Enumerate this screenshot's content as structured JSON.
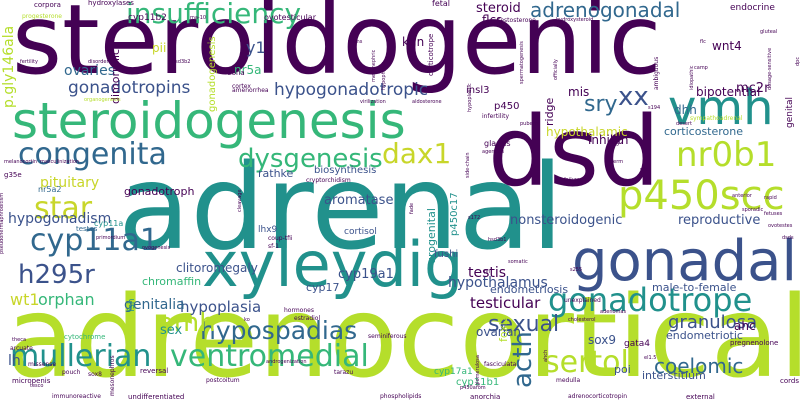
{
  "cloud": {
    "background": "#ffffff",
    "palette": {
      "purple": "#440154",
      "indigo": "#3b528b",
      "blue": "#31688e",
      "teal": "#21918c",
      "green": "#35b779",
      "lime": "#b5de2b",
      "yellow": "#c8d62a"
    },
    "words": [
      {
        "text": "steroidogenic",
        "weight": 1.0,
        "color": "purple"
      },
      {
        "text": "adrenal",
        "weight": 0.96,
        "color": "teal"
      },
      {
        "text": "adrenocortical",
        "weight": 0.94,
        "color": "lime"
      },
      {
        "text": "dsd",
        "weight": 0.82,
        "color": "purple"
      },
      {
        "text": "xyleydig",
        "weight": 0.7,
        "color": "teal"
      },
      {
        "text": "steroidogenesis",
        "weight": 0.66,
        "color": "green"
      },
      {
        "text": "gonadal",
        "weight": 0.56,
        "color": "indigo"
      },
      {
        "text": "vmh",
        "weight": 0.52,
        "color": "teal"
      },
      {
        "text": "p450scc",
        "weight": 0.42,
        "color": "lime"
      },
      {
        "text": "nr0b1",
        "weight": 0.38,
        "color": "lime"
      },
      {
        "text": "gonadotrope",
        "weight": 0.38,
        "color": "teal"
      },
      {
        "text": "mullerian",
        "weight": 0.36,
        "color": "teal"
      },
      {
        "text": "ventromedial",
        "weight": 0.36,
        "color": "green"
      },
      {
        "text": "cyp11a1",
        "weight": 0.36,
        "color": "blue"
      },
      {
        "text": "congenita",
        "weight": 0.34,
        "color": "blue"
      },
      {
        "text": "insufficiency",
        "weight": 0.32,
        "color": "green"
      },
      {
        "text": "sertoli",
        "weight": 0.32,
        "color": "lime"
      },
      {
        "text": "hypospadias",
        "weight": 0.3,
        "color": "blue"
      },
      {
        "text": "h295r",
        "weight": 0.3,
        "color": "indigo"
      },
      {
        "text": "dysgenesis",
        "weight": 0.28,
        "color": "green"
      },
      {
        "text": "dax1",
        "weight": 0.3,
        "color": "yellow"
      },
      {
        "text": "star",
        "weight": 0.3,
        "color": "yellow"
      },
      {
        "text": "acth",
        "weight": 0.3,
        "color": "blue"
      },
      {
        "text": "amh",
        "weight": 0.28,
        "color": "lime"
      },
      {
        "text": "xx",
        "weight": 0.28,
        "color": "indigo"
      },
      {
        "text": "adrenogonadal",
        "weight": 0.24,
        "color": "blue"
      },
      {
        "text": "sexual",
        "weight": 0.24,
        "color": "indigo"
      },
      {
        "text": "gonadotropins",
        "weight": 0.2,
        "color": "indigo"
      },
      {
        "text": "hypogonadotropic",
        "weight": 0.2,
        "color": "indigo"
      },
      {
        "text": "coelomic",
        "weight": 0.22,
        "color": "blue"
      },
      {
        "text": "sry",
        "weight": 0.22,
        "color": "blue"
      },
      {
        "text": "granulosa",
        "weight": 0.18,
        "color": "indigo"
      },
      {
        "text": "hypoplasia",
        "weight": 0.18,
        "color": "indigo"
      },
      {
        "text": "testicular",
        "weight": 0.18,
        "color": "purple"
      },
      {
        "text": "hypothalamus",
        "weight": 0.16,
        "color": "indigo"
      },
      {
        "text": "hypogonadism",
        "weight": 0.16,
        "color": "indigo"
      },
      {
        "text": "genitalia",
        "weight": 0.16,
        "color": "blue"
      },
      {
        "text": "testis",
        "weight": 0.16,
        "color": "purple"
      },
      {
        "text": "wt1",
        "weight": 0.18,
        "color": "yellow"
      },
      {
        "text": "orphan",
        "weight": 0.18,
        "color": "green"
      },
      {
        "text": "pituitary",
        "weight": 0.16,
        "color": "yellow"
      },
      {
        "text": "ovaries",
        "weight": 0.16,
        "color": "blue"
      },
      {
        "text": "y1",
        "weight": 0.18,
        "color": "indigo"
      },
      {
        "text": "nr5a",
        "weight": 0.14,
        "color": "green"
      },
      {
        "text": "kgn",
        "weight": 0.14,
        "color": "purple"
      },
      {
        "text": "steroid",
        "weight": 0.14,
        "color": "purple"
      },
      {
        "text": "flcs",
        "weight": 0.14,
        "color": "purple"
      },
      {
        "text": "mis",
        "weight": 0.14,
        "color": "purple"
      },
      {
        "text": "insl3",
        "weight": 0.12,
        "color": "purple"
      },
      {
        "text": "wnt4",
        "weight": 0.14,
        "color": "purple"
      },
      {
        "text": "mc2r",
        "weight": 0.14,
        "color": "purple"
      },
      {
        "text": "bipotential",
        "weight": 0.14,
        "color": "purple"
      },
      {
        "text": "hypothalamic",
        "weight": 0.14,
        "color": "yellow"
      },
      {
        "text": "corticosterone",
        "weight": 0.12,
        "color": "blue"
      },
      {
        "text": "dhh",
        "weight": 0.14,
        "color": "blue"
      },
      {
        "text": "inhibin",
        "weight": 0.14,
        "color": "purple"
      },
      {
        "text": "reproductive",
        "weight": 0.14,
        "color": "indigo"
      },
      {
        "text": "nonsteroidogenic",
        "weight": 0.14,
        "color": "indigo"
      },
      {
        "text": "male-to-female",
        "weight": 0.12,
        "color": "indigo"
      },
      {
        "text": "endometriosis",
        "weight": 0.12,
        "color": "indigo"
      },
      {
        "text": "endometriotic",
        "weight": 0.12,
        "color": "indigo"
      },
      {
        "text": "aromatase",
        "weight": 0.14,
        "color": "indigo"
      },
      {
        "text": "cyp19a1",
        "weight": 0.14,
        "color": "indigo"
      },
      {
        "text": "cyp17",
        "weight": 0.12,
        "color": "indigo"
      },
      {
        "text": "clitoromegaly",
        "weight": 0.14,
        "color": "indigo"
      },
      {
        "text": "chromaffin",
        "weight": 0.12,
        "color": "green"
      },
      {
        "text": "gonadotroph",
        "weight": 0.12,
        "color": "purple"
      },
      {
        "text": "rathke",
        "weight": 0.12,
        "color": "indigo"
      },
      {
        "text": "biosynthesis",
        "weight": 0.12,
        "color": "indigo"
      },
      {
        "text": "cyp11b1",
        "weight": 0.12,
        "color": "green"
      },
      {
        "text": "cyp17a1",
        "weight": 0.1,
        "color": "green"
      },
      {
        "text": "sox9",
        "weight": 0.14,
        "color": "indigo"
      },
      {
        "text": "gata4",
        "weight": 0.1,
        "color": "purple"
      },
      {
        "text": "ahc",
        "weight": 0.14,
        "color": "purple"
      },
      {
        "text": "interstitium",
        "weight": 0.12,
        "color": "indigo"
      },
      {
        "text": "fushi",
        "weight": 0.12,
        "color": "indigo"
      },
      {
        "text": "ovarian",
        "weight": 0.14,
        "color": "indigo"
      },
      {
        "text": "lhx9",
        "weight": 0.1,
        "color": "indigo"
      },
      {
        "text": "cortisol",
        "weight": 0.1,
        "color": "indigo"
      },
      {
        "text": "sex",
        "weight": 0.14,
        "color": "teal"
      },
      {
        "text": "lh",
        "weight": 0.16,
        "color": "indigo"
      },
      {
        "text": "poi",
        "weight": 0.12,
        "color": "indigo"
      },
      {
        "text": "p450",
        "weight": 0.12,
        "color": "purple"
      },
      {
        "text": "pii",
        "weight": 0.12,
        "color": "yellow"
      },
      {
        "text": "cyp11b2",
        "weight": 0.1,
        "color": "purple"
      },
      {
        "text": "nr5a2",
        "weight": 0.1,
        "color": "blue"
      },
      {
        "text": "cyp11a",
        "weight": 0.1,
        "color": "teal"
      },
      {
        "text": "endocrine",
        "weight": 0.1,
        "color": "purple"
      },
      {
        "text": "hydroxylases",
        "weight": 0.08,
        "color": "purple"
      },
      {
        "text": "pregnenolone",
        "weight": 0.08,
        "color": "purple"
      },
      {
        "text": "corpora",
        "weight": 0.07,
        "color": "purple"
      },
      {
        "text": "fetal",
        "weight": 0.08,
        "color": "purple"
      },
      {
        "text": "sympathoadrenal",
        "weight": 0.06,
        "color": "lime"
      },
      {
        "text": "zona",
        "weight": 0.08,
        "color": "purple"
      },
      {
        "text": "progesterone",
        "weight": 0.06,
        "color": "lime"
      },
      {
        "text": "dimorphic",
        "weight": 0.12,
        "color": "purple"
      },
      {
        "text": "gonadogenesis",
        "weight": 0.12,
        "color": "lime"
      },
      {
        "text": "ovotesticular",
        "weight": 0.08,
        "color": "purple"
      },
      {
        "text": "corticotrope",
        "weight": 0.08,
        "color": "purple"
      },
      {
        "text": "p450c17",
        "weight": 0.12,
        "color": "teal"
      },
      {
        "text": "urogenital",
        "weight": 0.12,
        "color": "teal"
      },
      {
        "text": "p.gly146ala",
        "weight": 0.14,
        "color": "lime"
      },
      {
        "text": "foxl2",
        "weight": 0.12,
        "color": "lime"
      },
      {
        "text": "genital",
        "weight": 0.1,
        "color": "purple"
      },
      {
        "text": "ridge",
        "weight": 0.12,
        "color": "purple"
      },
      {
        "text": "gnrh",
        "weight": 0.08,
        "color": "purple"
      },
      {
        "text": "glands",
        "weight": 0.08,
        "color": "purple"
      },
      {
        "text": "fog2",
        "weight": 0.06,
        "color": "purple"
      },
      {
        "text": "coup-tfii",
        "weight": 0.06,
        "color": "purple"
      },
      {
        "text": "testes",
        "weight": 0.08,
        "color": "blue"
      },
      {
        "text": "fsh",
        "weight": 0.1,
        "color": "teal"
      },
      {
        "text": "hormones",
        "weight": 0.06,
        "color": "purple"
      },
      {
        "text": "infertility",
        "weight": 0.06,
        "color": "purple"
      },
      {
        "text": "cryptorchidism",
        "weight": 0.06,
        "color": "purple"
      },
      {
        "text": "estradiol",
        "weight": 0.06,
        "color": "purple"
      },
      {
        "text": "cortex",
        "weight": 0.06,
        "color": "purple"
      },
      {
        "text": "amenorrhea",
        "weight": 0.06,
        "color": "purple"
      },
      {
        "text": "testosterone",
        "weight": 0.06,
        "color": "purple"
      },
      {
        "text": "adrenocorticotropin",
        "weight": 0.06,
        "color": "purple"
      },
      {
        "text": "anorchia",
        "weight": 0.06,
        "color": "purple"
      },
      {
        "text": "undifferentiated",
        "weight": 0.06,
        "color": "purple"
      },
      {
        "text": "cytochrome",
        "weight": 0.06,
        "color": "green"
      },
      {
        "text": "postcoitum",
        "weight": 0.06,
        "color": "purple"
      },
      {
        "text": "reversal",
        "weight": 0.06,
        "color": "purple"
      },
      {
        "text": "cords",
        "weight": 0.06,
        "color": "purple"
      },
      {
        "text": "micropenis",
        "weight": 0.06,
        "color": "purple"
      },
      {
        "text": "missense",
        "weight": 0.06,
        "color": "purple"
      },
      {
        "text": "arcuate",
        "weight": 0.06,
        "color": "purple"
      },
      {
        "text": "medulla",
        "weight": 0.06,
        "color": "purple"
      },
      {
        "text": "external",
        "weight": 0.06,
        "color": "purple"
      },
      {
        "text": "immunoreactive",
        "weight": 0.05,
        "color": "purple"
      },
      {
        "text": "seminiferous",
        "weight": 0.06,
        "color": "purple"
      },
      {
        "text": "sf-1",
        "weight": 0.06,
        "color": "purple"
      },
      {
        "text": "sox8",
        "weight": 0.06,
        "color": "purple"
      },
      {
        "text": "pouch",
        "weight": 0.06,
        "color": "purple"
      },
      {
        "text": "tarazu",
        "weight": 0.06,
        "color": "purple"
      },
      {
        "text": "phospholipids",
        "weight": 0.05,
        "color": "purple"
      },
      {
        "text": "fasciculata",
        "weight": 0.06,
        "color": "purple"
      },
      {
        "text": "adenomas",
        "weight": 0.05,
        "color": "purple"
      },
      {
        "text": "unexplained",
        "weight": 0.06,
        "color": "purple"
      },
      {
        "text": "virilization",
        "weight": 0.05,
        "color": "purple"
      },
      {
        "text": "aldosterone",
        "weight": 0.05,
        "color": "purple"
      },
      {
        "text": "masculinization",
        "weight": 0.05,
        "color": "purple"
      },
      {
        "text": "primordium",
        "weight": 0.05,
        "color": "purple"
      },
      {
        "text": "organogenesis",
        "weight": 0.05,
        "color": "lime"
      },
      {
        "text": "fertility",
        "weight": 0.05,
        "color": "purple"
      },
      {
        "text": "disorders",
        "weight": 0.05,
        "color": "purple"
      },
      {
        "text": "hsd3b2",
        "weight": 0.05,
        "color": "purple"
      },
      {
        "text": "g35e",
        "weight": 0.05,
        "color": "purple"
      },
      {
        "text": "camp",
        "weight": 0.05,
        "color": "purple"
      },
      {
        "text": "puberty",
        "weight": 0.05,
        "color": "purple"
      },
      {
        "text": "failure",
        "weight": 0.05,
        "color": "purple"
      },
      {
        "text": "agenesis",
        "weight": 0.05,
        "color": "purple"
      },
      {
        "text": "germ",
        "weight": 0.05,
        "color": "purple"
      },
      {
        "text": "r2c",
        "weight": 0.05,
        "color": "purple"
      },
      {
        "text": "desert",
        "weight": 0.05,
        "color": "purple"
      },
      {
        "text": "ambiguous",
        "weight": 0.06,
        "color": "purple"
      },
      {
        "text": "sporadic",
        "weight": 0.05,
        "color": "purple"
      },
      {
        "text": "glomerulosa",
        "weight": 0.05,
        "color": "purple"
      },
      {
        "text": "cholesterol",
        "weight": 0.05,
        "color": "purple"
      },
      {
        "text": "hsd3b1",
        "weight": 0.05,
        "color": "purple"
      },
      {
        "text": "dsds",
        "weight": 0.05,
        "color": "purple"
      },
      {
        "text": "ovotestes",
        "weight": 0.05,
        "color": "purple"
      },
      {
        "text": "el1.5",
        "weight": 0.05,
        "color": "purple"
      },
      {
        "text": "p450arom",
        "weight": 0.05,
        "color": "purple"
      },
      {
        "text": "ahch",
        "weight": 0.05,
        "color": "purple"
      },
      {
        "text": "tesco",
        "weight": 0.05,
        "color": "purple"
      },
      {
        "text": "theca",
        "weight": 0.05,
        "color": "purple"
      },
      {
        "text": "ko",
        "weight": 0.05,
        "color": "purple"
      },
      {
        "text": "pseudohermaphroditism",
        "weight": 0.05,
        "color": "purple"
      },
      {
        "text": "mesonephros",
        "weight": 0.06,
        "color": "purple"
      },
      {
        "text": "androgenization",
        "weight": 0.05,
        "color": "purple"
      },
      {
        "text": "side-chain",
        "weight": 0.05,
        "color": "purple"
      },
      {
        "text": "melanocortin",
        "weight": 0.05,
        "color": "purple"
      },
      {
        "text": "mesonephric",
        "weight": 0.05,
        "color": "purple"
      },
      {
        "text": "hydroxysteroid",
        "weight": 0.05,
        "color": "purple"
      },
      {
        "text": "spermatogenesis",
        "weight": 0.05,
        "color": "purple"
      },
      {
        "text": "ovogenesis",
        "weight": 0.05,
        "color": "purple"
      },
      {
        "text": "hypoplastic",
        "weight": 0.05,
        "color": "purple"
      },
      {
        "text": "dosage-sensitive",
        "weight": 0.05,
        "color": "purple"
      },
      {
        "text": "gluteal",
        "weight": 0.05,
        "color": "purple"
      },
      {
        "text": "officially",
        "weight": 0.05,
        "color": "purple"
      },
      {
        "text": "flc",
        "weight": 0.05,
        "color": "purple"
      },
      {
        "text": "dpc",
        "weight": 0.05,
        "color": "purple"
      },
      {
        "text": "s172",
        "weight": 0.05,
        "color": "purple"
      },
      {
        "text": "s194",
        "weight": 0.05,
        "color": "purple"
      },
      {
        "text": "pii",
        "weight": 0.04,
        "color": "purple"
      },
      {
        "text": "s255",
        "weight": 0.05,
        "color": "purple"
      },
      {
        "text": "somatic",
        "weight": 0.05,
        "color": "purple"
      },
      {
        "text": "fade",
        "weight": 0.05,
        "color": "purple"
      },
      {
        "text": "cleavage",
        "weight": 0.05,
        "color": "purple"
      },
      {
        "text": "wilms",
        "weight": 0.05,
        "color": "purple"
      },
      {
        "text": "fetuses",
        "weight": 0.05,
        "color": "purple"
      },
      {
        "text": "idiopathic",
        "weight": 0.05,
        "color": "purple"
      },
      {
        "text": "anterior",
        "weight": 0.05,
        "color": "purple"
      },
      {
        "text": "rapid",
        "weight": 0.05,
        "color": "purple"
      },
      {
        "text": "ma-10",
        "weight": 0.05,
        "color": "purple"
      },
      {
        "text": "hypophysis",
        "weight": 0.05,
        "color": "purple"
      }
    ]
  }
}
